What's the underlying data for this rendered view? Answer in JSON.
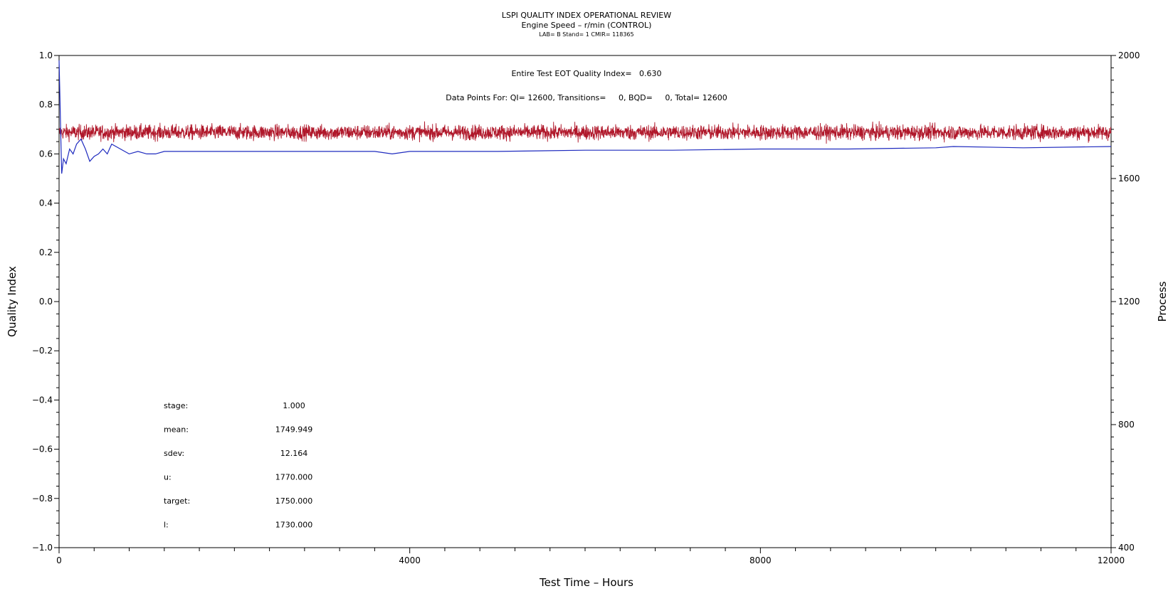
{
  "chart_data": {
    "type": "line",
    "title": "LSPI QUALITY INDEX OPERATIONAL REVIEW",
    "subtitle": "Engine Speed – r/min (CONTROL)",
    "subtitle2": "LAB= B Stand= 1 CMIR= 118365",
    "xlabel": "Test Time – Hours",
    "ylabel": "Quality Index",
    "y2label": "Process",
    "xlim": [
      0,
      12000
    ],
    "ylim": [
      -1.0,
      1.0
    ],
    "y2lim": [
      400,
      2000
    ],
    "x_ticks": [
      "0",
      "4000",
      "8000",
      "12000"
    ],
    "y_ticks": [
      "1.0",
      "0.8",
      "0.6",
      "0.4",
      "0.2",
      "0.0",
      "−0.2",
      "−0.4",
      "−0.6",
      "−0.8",
      "−1.0"
    ],
    "y2_ticks": [
      "2000",
      "1600",
      "1200",
      "800",
      "400"
    ],
    "annotations": {
      "eot_line": "Entire Test EOT Quality Index=   0.630",
      "data_points_line": "Data Points For: QI= 12600, Transitions=     0, BQD=     0, Total= 12600"
    },
    "stats": [
      {
        "label": "stage:",
        "value": "1.000"
      },
      {
        "label": "mean:",
        "value": "1749.949"
      },
      {
        "label": "sdev:",
        "value": "12.164"
      },
      {
        "label": "u:",
        "value": "1770.000"
      },
      {
        "label": "target:",
        "value": "1750.000"
      },
      {
        "label": "l:",
        "value": "1730.000"
      }
    ],
    "series": [
      {
        "axis": "left",
        "color": "#1f2bbf",
        "x": [
          0,
          10,
          20,
          30,
          50,
          80,
          120,
          160,
          200,
          250,
          300,
          350,
          400,
          450,
          500,
          550,
          600,
          700,
          800,
          900,
          1000,
          1100,
          1200,
          1400,
          1600,
          1800,
          2000,
          2400,
          2800,
          3200,
          3600,
          3800,
          4000,
          5000,
          6000,
          7000,
          8000,
          9000,
          10000,
          10200,
          11000,
          12000
        ],
        "y": [
          0.98,
          0.83,
          0.66,
          0.52,
          0.58,
          0.56,
          0.62,
          0.6,
          0.64,
          0.66,
          0.62,
          0.57,
          0.59,
          0.6,
          0.62,
          0.6,
          0.64,
          0.62,
          0.6,
          0.61,
          0.6,
          0.6,
          0.61,
          0.61,
          0.61,
          0.61,
          0.61,
          0.61,
          0.61,
          0.61,
          0.61,
          0.6,
          0.61,
          0.61,
          0.615,
          0.615,
          0.62,
          0.62,
          0.625,
          0.63,
          0.625,
          0.63
        ]
      },
      {
        "axis": "right",
        "color": "#b0172a",
        "mean": 1749.949,
        "sdev": 12.164,
        "n_points": 12600
      }
    ]
  }
}
